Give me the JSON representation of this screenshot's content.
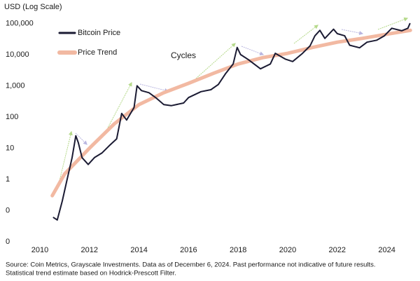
{
  "chart_data": {
    "type": "line",
    "title": "USD (Log Scale)",
    "annotation": "Cycles",
    "source": [
      "Source: Coin Metrics, Grayscale Investments. Data as of December 6, 2024. Past performance not indicative of future results.",
      "Statistical trend estimate based on Hodrick-Prescott Filter."
    ],
    "log_scale": true,
    "grid": false,
    "legend": "upper left",
    "xlim": [
      2010,
      2025
    ],
    "xticks": [
      2010,
      2012,
      2014,
      2016,
      2018,
      2020,
      2022,
      2024
    ],
    "ylim": [
      0.01,
      200000
    ],
    "yticks": [
      {
        "value": 0.01,
        "label": "0"
      },
      {
        "value": 0.1,
        "label": "0"
      },
      1,
      10,
      100,
      {
        "value": 1000,
        "label": "1,000"
      },
      {
        "value": 10000,
        "label": "10,000"
      },
      {
        "value": 100000,
        "label": "100,000"
      }
    ],
    "series": [
      {
        "name": "Price Trend",
        "color": "#f2b9a2",
        "width": 5,
        "x": [
          2010.5,
          2011,
          2012,
          2013,
          2014,
          2015,
          2016,
          2017,
          2018,
          2019,
          2020,
          2021,
          2022,
          2023,
          2024,
          2024.95
        ],
        "values": [
          0.3,
          1.5,
          10,
          60,
          250,
          600,
          1200,
          2500,
          5000,
          8000,
          11000,
          17000,
          25000,
          33000,
          45000,
          60000
        ]
      },
      {
        "name": "Bitcoin Price",
        "color": "#1b1b33",
        "width": 2,
        "x": [
          2010.55,
          2010.7,
          2010.9,
          2011.1,
          2011.3,
          2011.45,
          2011.55,
          2011.7,
          2011.95,
          2012.2,
          2012.5,
          2012.8,
          2013.1,
          2013.3,
          2013.5,
          2013.8,
          2013.92,
          2014.1,
          2014.4,
          2014.7,
          2015.0,
          2015.3,
          2015.8,
          2016.0,
          2016.5,
          2016.9,
          2017.2,
          2017.5,
          2017.8,
          2017.96,
          2018.1,
          2018.4,
          2018.9,
          2019.3,
          2019.5,
          2019.9,
          2020.2,
          2020.6,
          2020.9,
          2021.1,
          2021.3,
          2021.5,
          2021.85,
          2022.0,
          2022.3,
          2022.5,
          2022.9,
          2023.2,
          2023.6,
          2023.9,
          2024.2,
          2024.6,
          2024.85,
          2024.93
        ],
        "values": [
          0.06,
          0.05,
          0.2,
          1,
          5,
          25,
          15,
          5,
          3,
          5,
          7,
          12,
          20,
          130,
          80,
          200,
          1000,
          700,
          600,
          400,
          250,
          230,
          280,
          420,
          650,
          750,
          1100,
          2500,
          5000,
          17000,
          10000,
          7000,
          3500,
          5000,
          11000,
          7200,
          6000,
          11000,
          19000,
          40000,
          60000,
          33000,
          65000,
          47000,
          40000,
          20000,
          16500,
          25000,
          29000,
          40000,
          70000,
          58000,
          70000,
          98000
        ]
      }
    ]
  }
}
